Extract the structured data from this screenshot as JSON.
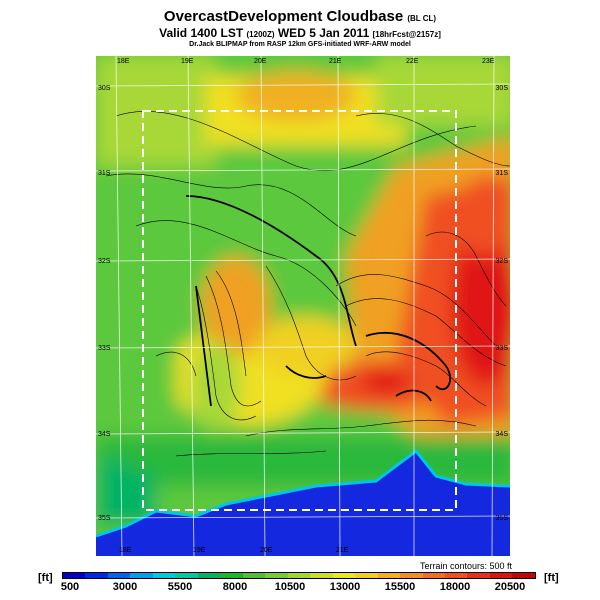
{
  "header": {
    "title": "OvercastDevelopment Cloudbase",
    "title_suffix": "(BL CL)",
    "valid_prefix": "Valid 1400 LST",
    "valid_code": "(1200Z)",
    "valid_date": "WED 5 Jan 2011",
    "forecast": "[18hrFcst@2157z]",
    "credit": "Dr.Jack BLIPMAP from RASP 12km GFS-initiated WRF-ARW model"
  },
  "map": {
    "lon_labels_top": [
      "18E",
      "19E",
      "20E",
      "21E",
      "22E",
      "23E"
    ],
    "lon_labels_bottom": [
      "18E",
      "19E",
      "20E",
      "21E"
    ],
    "lat_labels_left": [
      "30S",
      "31S",
      "32S",
      "33S",
      "34S",
      "35S"
    ],
    "lat_labels_right": [
      "30S",
      "31S",
      "32S",
      "33S",
      "34S",
      "35S"
    ],
    "terrain_note": "Terrain contours: 500 ft",
    "colors": {
      "ocean": "#1428e0",
      "coast_green": "#2cb83c",
      "mid_green": "#5cc83c",
      "yellow_green": "#a8d838",
      "yellow": "#f0e020",
      "orange": "#f0a020",
      "red_orange": "#f05020",
      "red": "#e01818"
    }
  },
  "colorbar": {
    "unit_left": "[ft]",
    "unit_right": "[ft]",
    "tick_labels": [
      "500",
      "3000",
      "5500",
      "8000",
      "10500",
      "13000",
      "15500",
      "18000",
      "20500"
    ],
    "colors": [
      "#0000c8",
      "#0028e8",
      "#0064f0",
      "#00a0f0",
      "#00c8e0",
      "#00c8a0",
      "#00b464",
      "#20b428",
      "#50c030",
      "#78cc30",
      "#a0d830",
      "#c8e028",
      "#e8e820",
      "#f0d020",
      "#f0b020",
      "#f09020",
      "#f07020",
      "#f05020",
      "#e83018",
      "#d81810",
      "#c00808"
    ]
  }
}
